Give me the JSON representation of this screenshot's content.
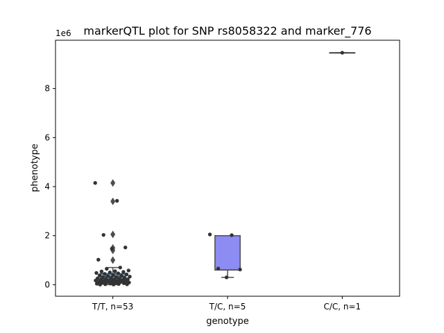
{
  "chart_data": {
    "type": "box",
    "title": "markerQTL plot for SNP rs8058322 and marker_776",
    "xlabel": "genotype",
    "ylabel": "phenotype",
    "y_multiplier_label": "1e6",
    "ylim": [
      -470000,
      9970000
    ],
    "yticks": [
      0,
      2000000,
      4000000,
      6000000,
      8000000
    ],
    "ytick_labels": [
      "0",
      "2",
      "4",
      "6",
      "8"
    ],
    "categories": [
      "T/T, n=53",
      "T/C, n=5",
      "C/C, n=1"
    ],
    "colors": [
      "#5ba3d6",
      "#8c8cf2",
      "#f0a070"
    ],
    "grid": false,
    "boxes": [
      {
        "category": "T/T, n=53",
        "whisker_low": 0,
        "q1": 200000,
        "median": 330000,
        "q3": 450000,
        "whisker_high": 700000,
        "outliers": [
          1000000,
          1400000,
          1500000,
          2050000,
          3400000,
          4150000
        ]
      },
      {
        "category": "T/C, n=5",
        "whisker_low": 300000,
        "q1": 600000,
        "median": 600000,
        "q3": 2000000,
        "whisker_high": 2000000,
        "outliers": []
      },
      {
        "category": "C/C, n=1",
        "whisker_low": 9460000,
        "q1": 9460000,
        "median": 9460000,
        "q3": 9460000,
        "whisker_high": 9460000,
        "outliers": []
      }
    ],
    "points": [
      {
        "category": "T/T, n=53",
        "values": [
          4150000,
          3420000,
          2030000,
          1520000,
          1470000,
          1020000,
          700000,
          650000,
          580000,
          550000,
          540000,
          520000,
          500000,
          480000,
          460000,
          440000,
          420000,
          400000,
          380000,
          360000,
          350000,
          330000,
          310000,
          300000,
          280000,
          270000,
          260000,
          240000,
          230000,
          220000,
          210000,
          200000,
          190000,
          180000,
          170000,
          160000,
          150000,
          140000,
          130000,
          120000,
          110000,
          100000,
          90000,
          80000,
          70000,
          60000,
          50000,
          40000,
          30000,
          20000,
          15000,
          10000,
          5000
        ]
      },
      {
        "category": "T/C, n=5",
        "values": [
          2050000,
          2020000,
          660000,
          620000,
          300000
        ]
      },
      {
        "category": "C/C, n=1",
        "values": [
          9460000
        ]
      }
    ]
  }
}
